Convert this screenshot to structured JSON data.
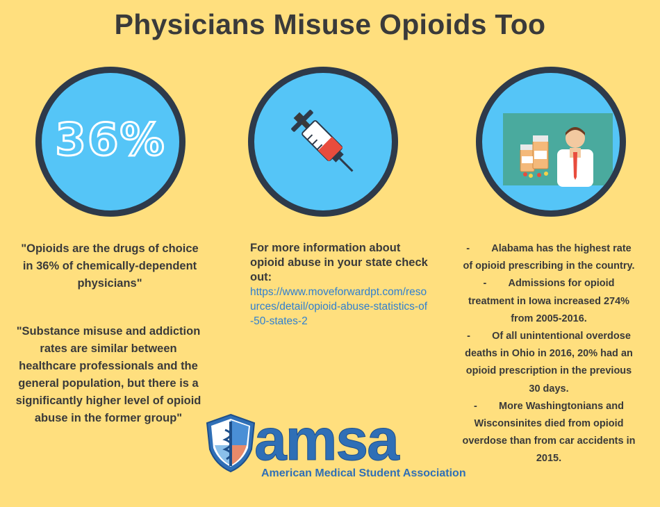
{
  "title": "Physicians Misuse Opioids Too",
  "circle1": {
    "text": "36%",
    "icon": "percent-figure"
  },
  "circle2": {
    "icon": "syringe-icon"
  },
  "circle3": {
    "icon": "doctor-with-pill-bottles-icon"
  },
  "quotes": [
    "\"Opioids are the drugs of choice in 36% of chemically-dependent physicians\"",
    "\"Substance misuse and addiction rates are similar between healthcare professionals and the general population, but there is a significantly higher level of opioid abuse in the former group\""
  ],
  "info": {
    "text": "For more information about opioid abuse in your state check out:",
    "link": "https://www.moveforwardpt.com/resources/detail/opioid-abuse-statistics-of-50-states-2"
  },
  "facts": [
    "Alabama has the highest rate of opioid prescribing in the country.",
    "Admissions for opioid treatment in Iowa increased 274% from 2005-2016.",
    "Of all unintentional overdose deaths in Ohio in 2016, 20% had an opioid prescription in the previous 30 days.",
    "More Washingtonians and Wisconsinites died from opioid overdose than from car accidents in 2015."
  ],
  "fact_marker": "-",
  "logo": {
    "word": "amsa",
    "subtitle": "American Medical Student Association",
    "icon": "caduceus-shield-logo"
  },
  "colors": {
    "background": "#FFDF7E",
    "circle_fill": "#55C5F7",
    "circle_border": "#2E3A4A",
    "link": "#2f7fd0",
    "logo_blue": "#2f6fb6"
  }
}
